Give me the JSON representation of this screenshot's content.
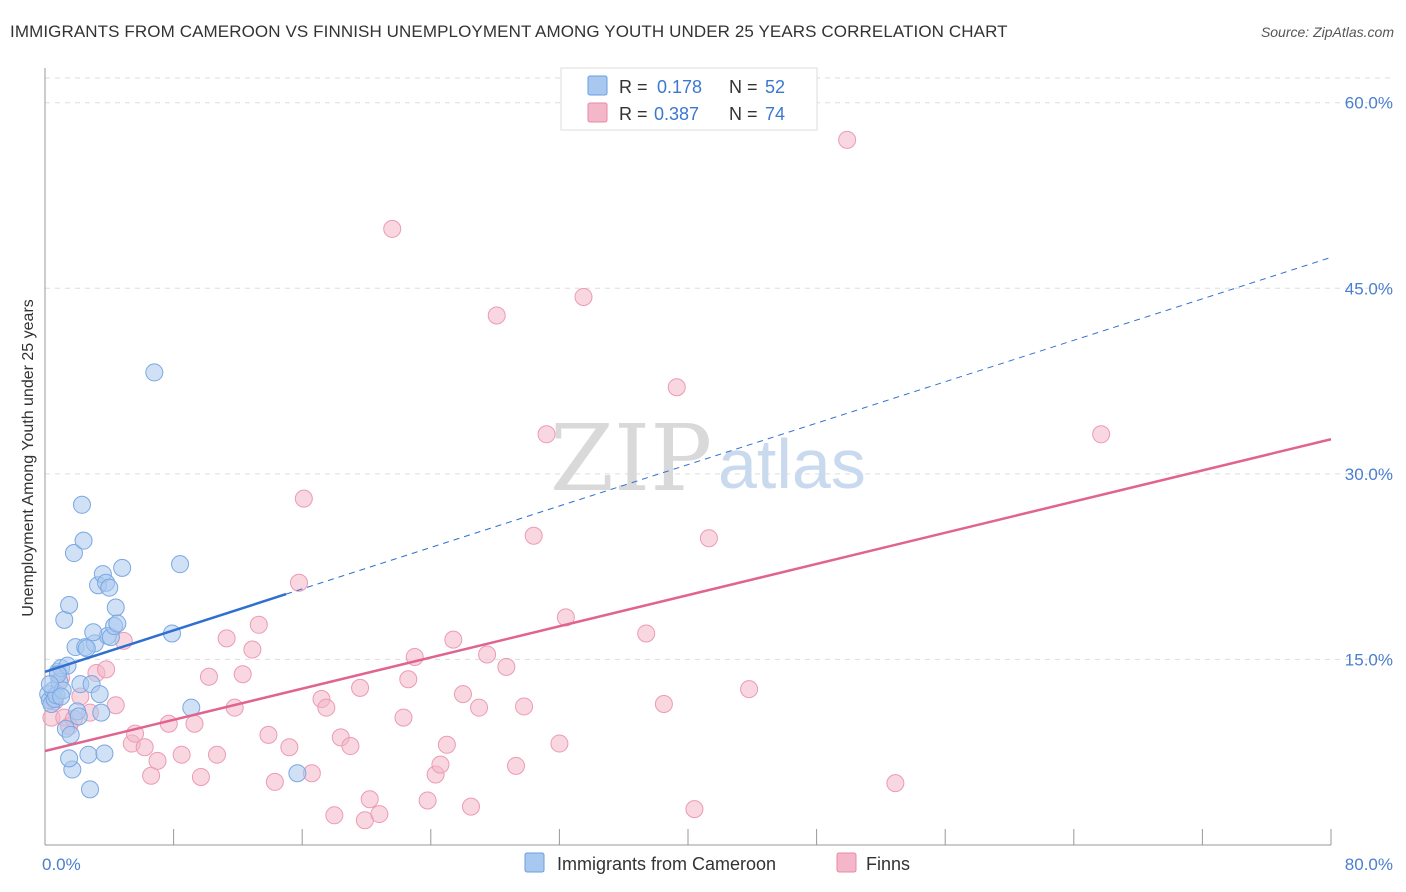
{
  "header": {
    "title": "IMMIGRANTS FROM CAMEROON VS FINNISH UNEMPLOYMENT AMONG YOUTH UNDER 25 YEARS CORRELATION CHART",
    "source": "Source: ZipAtlas.com"
  },
  "watermark": {
    "zip": "ZIP",
    "atlas": "atlas"
  },
  "legend_top": {
    "rows": [
      {
        "r_label": "R =",
        "r_value": "0.178",
        "n_label": "N =",
        "n_value": "52",
        "color": "#a9c8ef"
      },
      {
        "r_label": "R =",
        "r_value": "0.387",
        "n_label": "N =",
        "n_value": "74",
        "color": "#f4b6c9"
      }
    ]
  },
  "legend_bottom": {
    "items": [
      {
        "label": "Immigrants from Cameroon",
        "color": "#a9c8ef"
      },
      {
        "label": "Finns",
        "color": "#f4b6c9"
      }
    ]
  },
  "chart_data": {
    "type": "scatter",
    "title": "IMMIGRANTS FROM CAMEROON VS FINNISH UNEMPLOYMENT AMONG YOUTH UNDER 25 YEARS CORRELATION CHART",
    "xlabel": "",
    "ylabel": "Unemployment Among Youth under 25 years",
    "xlim": [
      0,
      80
    ],
    "ylim": [
      0,
      62
    ],
    "x_tick_labels": [
      "0.0%",
      "80.0%"
    ],
    "y_ticks": [
      15,
      30,
      45,
      60
    ],
    "y_tick_labels": [
      "15.0%",
      "30.0%",
      "45.0%",
      "60.0%"
    ],
    "grid": true,
    "legend_position": "top-center",
    "series": [
      {
        "name": "Immigrants from Cameroon",
        "color": "#a9c8ef",
        "line_color": "#2f6fd0",
        "trend": {
          "x_start": 0,
          "y_start": 14.0,
          "x_solid_end": 15,
          "x_end": 80,
          "y_end": 47.5
        },
        "points": [
          [
            0.2,
            12.2
          ],
          [
            0.3,
            11.7
          ],
          [
            0.4,
            11.4
          ],
          [
            0.5,
            12.5
          ],
          [
            0.6,
            11.8
          ],
          [
            0.7,
            12.1
          ],
          [
            0.8,
            14.0
          ],
          [
            0.9,
            13.2
          ],
          [
            1.0,
            14.3
          ],
          [
            1.1,
            12.5
          ],
          [
            1.2,
            18.2
          ],
          [
            1.3,
            9.4
          ],
          [
            1.4,
            14.5
          ],
          [
            1.5,
            19.4
          ],
          [
            1.6,
            8.9
          ],
          [
            1.7,
            6.1
          ],
          [
            1.8,
            23.6
          ],
          [
            1.9,
            16.0
          ],
          [
            2.0,
            10.8
          ],
          [
            2.1,
            10.4
          ],
          [
            2.2,
            13.0
          ],
          [
            2.3,
            27.5
          ],
          [
            2.4,
            24.6
          ],
          [
            2.5,
            16.0
          ],
          [
            2.7,
            7.3
          ],
          [
            2.8,
            4.5
          ],
          [
            2.9,
            13.0
          ],
          [
            3.1,
            16.3
          ],
          [
            3.3,
            21.0
          ],
          [
            3.4,
            12.2
          ],
          [
            3.5,
            10.7
          ],
          [
            3.6,
            21.9
          ],
          [
            3.7,
            7.4
          ],
          [
            3.8,
            21.2
          ],
          [
            3.9,
            16.9
          ],
          [
            4.0,
            20.8
          ],
          [
            4.1,
            16.8
          ],
          [
            4.3,
            17.7
          ],
          [
            4.4,
            19.2
          ],
          [
            4.5,
            17.9
          ],
          [
            4.8,
            22.4
          ],
          [
            1.5,
            7.0
          ],
          [
            6.8,
            38.2
          ],
          [
            7.9,
            17.1
          ],
          [
            8.4,
            22.7
          ],
          [
            9.1,
            11.1
          ],
          [
            15.7,
            5.8
          ],
          [
            0.8,
            13.8
          ],
          [
            1.0,
            12.0
          ],
          [
            2.6,
            15.9
          ],
          [
            3.0,
            17.2
          ],
          [
            0.3,
            13.0
          ]
        ]
      },
      {
        "name": "Finns",
        "color": "#f4b6c9",
        "line_color": "#e0648f",
        "trend": {
          "x_start": 0,
          "y_start": 7.6,
          "x_end": 80,
          "y_end": 32.8
        },
        "points": [
          [
            0.4,
            10.3
          ],
          [
            0.6,
            11.6
          ],
          [
            1.0,
            13.5
          ],
          [
            1.2,
            10.3
          ],
          [
            1.5,
            9.6
          ],
          [
            1.8,
            10.2
          ],
          [
            2.2,
            12.0
          ],
          [
            2.8,
            10.7
          ],
          [
            3.2,
            13.9
          ],
          [
            3.8,
            14.2
          ],
          [
            4.4,
            11.3
          ],
          [
            4.9,
            16.5
          ],
          [
            5.4,
            8.2
          ],
          [
            5.6,
            9.0
          ],
          [
            6.2,
            7.9
          ],
          [
            6.6,
            5.6
          ],
          [
            7.0,
            6.8
          ],
          [
            7.7,
            9.8
          ],
          [
            8.5,
            7.3
          ],
          [
            9.3,
            9.8
          ],
          [
            9.7,
            5.5
          ],
          [
            10.2,
            13.6
          ],
          [
            10.7,
            7.3
          ],
          [
            11.3,
            16.7
          ],
          [
            11.8,
            11.1
          ],
          [
            12.3,
            13.8
          ],
          [
            12.9,
            15.8
          ],
          [
            13.3,
            17.8
          ],
          [
            13.9,
            8.9
          ],
          [
            14.3,
            5.1
          ],
          [
            15.2,
            7.9
          ],
          [
            15.8,
            21.2
          ],
          [
            16.1,
            28.0
          ],
          [
            16.6,
            5.8
          ],
          [
            17.2,
            11.8
          ],
          [
            17.5,
            11.1
          ],
          [
            18.0,
            2.4
          ],
          [
            18.4,
            8.7
          ],
          [
            19.0,
            8.0
          ],
          [
            19.6,
            12.7
          ],
          [
            19.9,
            2.0
          ],
          [
            20.2,
            3.7
          ],
          [
            20.8,
            2.5
          ],
          [
            21.6,
            49.8
          ],
          [
            22.3,
            10.3
          ],
          [
            22.6,
            13.4
          ],
          [
            23.0,
            15.2
          ],
          [
            23.8,
            3.6
          ],
          [
            24.3,
            5.7
          ],
          [
            24.6,
            6.5
          ],
          [
            25.0,
            8.1
          ],
          [
            25.4,
            16.6
          ],
          [
            26.0,
            12.2
          ],
          [
            26.5,
            3.1
          ],
          [
            27.0,
            11.1
          ],
          [
            27.5,
            15.4
          ],
          [
            28.1,
            42.8
          ],
          [
            28.7,
            14.4
          ],
          [
            29.3,
            6.4
          ],
          [
            29.8,
            11.2
          ],
          [
            30.4,
            25.0
          ],
          [
            31.2,
            33.2
          ],
          [
            32.0,
            8.2
          ],
          [
            32.4,
            18.4
          ],
          [
            33.5,
            44.3
          ],
          [
            37.4,
            17.1
          ],
          [
            38.5,
            11.4
          ],
          [
            39.3,
            37.0
          ],
          [
            40.4,
            2.9
          ],
          [
            41.3,
            24.8
          ],
          [
            43.8,
            12.6
          ],
          [
            49.9,
            57.0
          ],
          [
            52.9,
            5.0
          ],
          [
            65.7,
            33.2
          ]
        ]
      }
    ]
  }
}
